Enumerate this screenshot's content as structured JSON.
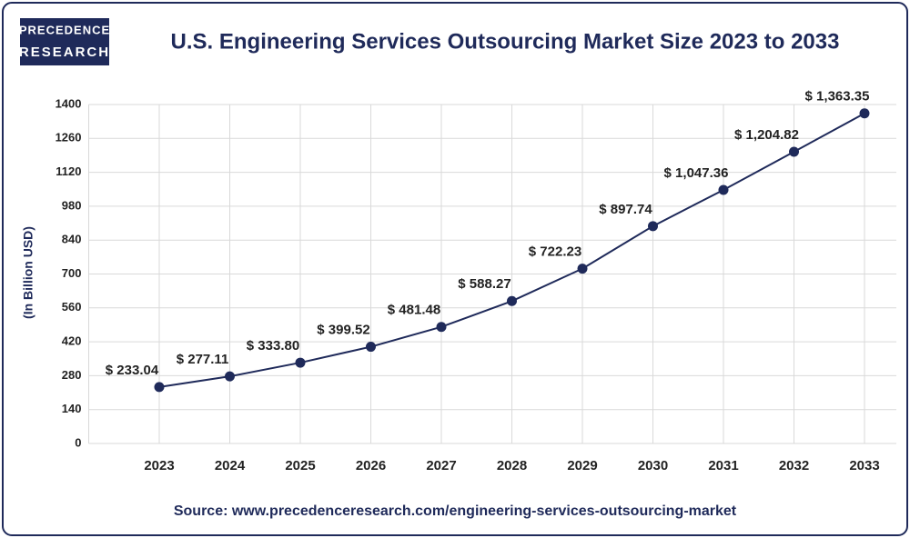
{
  "logo": [
    "PRECEDENCE",
    "RESEARCH"
  ],
  "chart_data": {
    "type": "line",
    "title": "U.S. Engineering Services Outsourcing Market Size 2023 to 2033",
    "y_label": "(In Billion USD)",
    "source": "Source: www.precedenceresearch.com/engineering-services-outsourcing-market",
    "categories": [
      "2023",
      "2024",
      "2025",
      "2026",
      "2027",
      "2028",
      "2029",
      "2030",
      "2031",
      "2032",
      "2033"
    ],
    "values": [
      233.04,
      277.11,
      333.8,
      399.52,
      481.48,
      588.27,
      722.23,
      897.74,
      1047.36,
      1204.82,
      1363.35
    ],
    "value_labels": [
      "$ 233.04",
      "$ 277.11",
      "$ 333.80",
      "$ 399.52",
      "$ 481.48",
      "$ 588.27",
      "$ 722.23",
      "$ 897.74",
      "$ 1,047.36",
      "$ 1,204.82",
      "$ 1,363.35"
    ],
    "color": "#1f2a5a",
    "ylim": [
      0,
      1400
    ],
    "yticks": [
      0,
      140,
      280,
      420,
      560,
      700,
      840,
      980,
      1120,
      1260,
      1400
    ],
    "grid": true
  }
}
